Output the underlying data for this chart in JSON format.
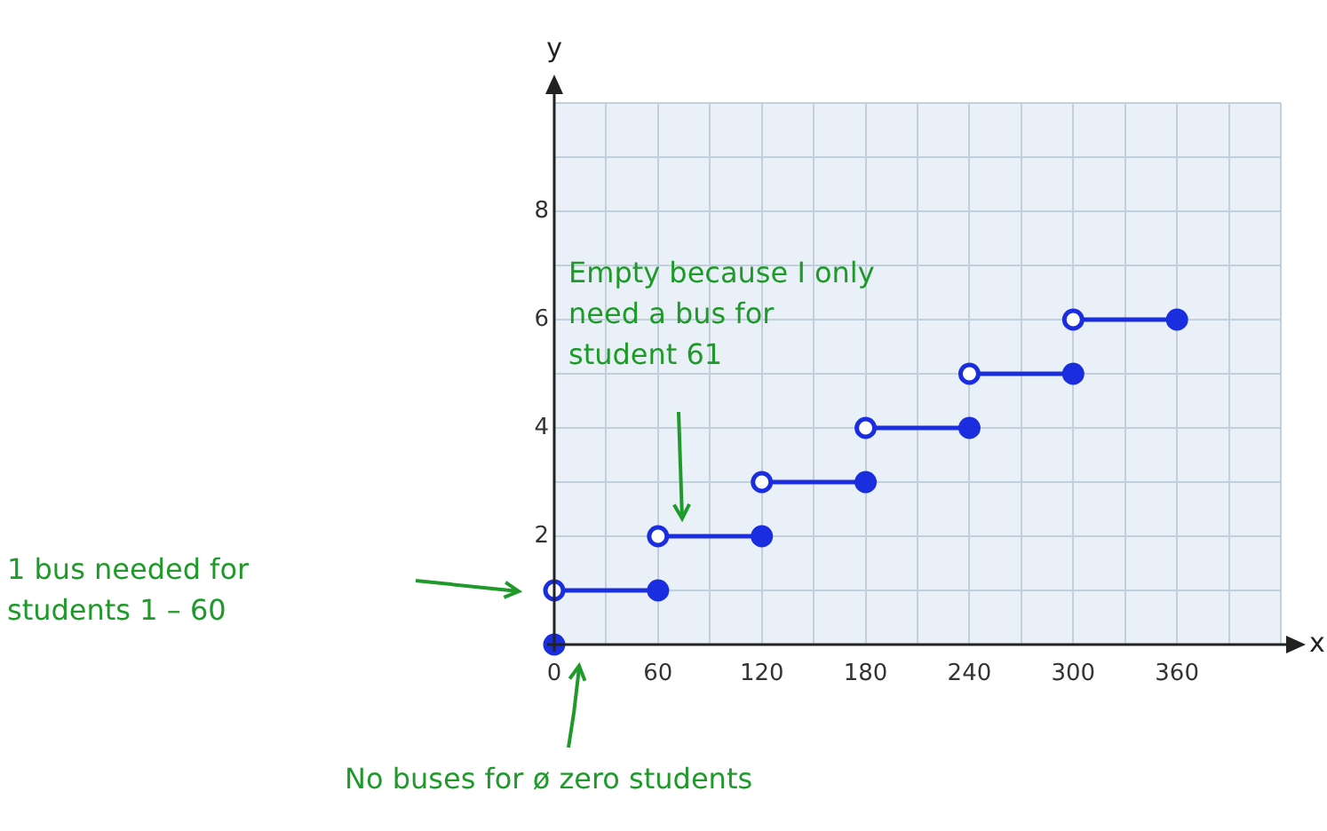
{
  "chart_data": {
    "type": "line",
    "xlabel": "x",
    "ylabel": "y",
    "xlim": [
      0,
      420
    ],
    "ylim": [
      0,
      10
    ],
    "xticks": [
      0,
      {
        "value": 30,
        "label": null
      },
      60,
      {
        "value": 90,
        "label": null
      },
      120,
      {
        "value": 150,
        "label": null
      },
      180,
      {
        "value": 210,
        "label": null
      },
      240,
      {
        "value": 270,
        "label": null
      },
      300,
      {
        "value": 330,
        "label": null
      },
      360,
      {
        "value": 390,
        "label": null
      },
      {
        "value": 420,
        "label": null
      }
    ],
    "yticks": [
      {
        "value": 0,
        "label": null
      },
      {
        "value": 1,
        "label": null
      },
      2,
      {
        "value": 3,
        "label": null
      },
      4,
      {
        "value": 5,
        "label": null
      },
      6,
      {
        "value": 7,
        "label": null
      },
      8,
      {
        "value": 9,
        "label": null
      },
      {
        "value": 10,
        "label": null
      }
    ],
    "grid": true,
    "legend": false,
    "marker": "circle",
    "series": [
      {
        "color": "#1a2ee0",
        "x": [
          0,
          60
        ],
        "values": [
          1,
          1
        ]
      },
      {
        "color": "#1a2ee0",
        "x": [
          60,
          120
        ],
        "values": [
          2,
          2
        ]
      },
      {
        "color": "#1a2ee0",
        "x": [
          120,
          180
        ],
        "values": [
          3,
          3
        ]
      },
      {
        "color": "#1a2ee0",
        "x": [
          180,
          240
        ],
        "values": [
          4,
          4
        ]
      },
      {
        "color": "#1a2ee0",
        "x": [
          240,
          300
        ],
        "values": [
          5,
          5
        ]
      },
      {
        "color": "#1a2ee0",
        "x": [
          300,
          360
        ],
        "values": [
          6,
          6
        ]
      },
      {
        "type": "scatter",
        "color": "#1a2ee0",
        "x": [
          0
        ],
        "values": [
          0
        ]
      }
    ],
    "annotations": [
      "Empty because I only need a bus for student 61",
      "1 bus needed for students 1 – 60",
      "No buses for ø zero students"
    ]
  }
}
